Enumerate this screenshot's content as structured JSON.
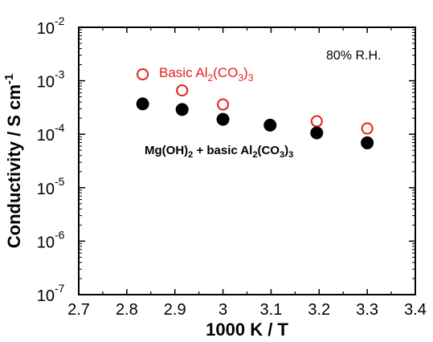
{
  "chart_data": {
    "type": "scatter",
    "xlabel": "1000 K / T",
    "ylabel": "Conductivity / S cm",
    "ylabel_superscript": "-1",
    "x_ticks": [
      "2.7",
      "2.8",
      "2.9",
      "3",
      "3.1",
      "3.2",
      "3.3",
      "3.4"
    ],
    "y_ticks": [
      {
        "base": "10",
        "exp": "-7"
      },
      {
        "base": "10",
        "exp": "-6"
      },
      {
        "base": "10",
        "exp": "-5"
      },
      {
        "base": "10",
        "exp": "-4"
      },
      {
        "base": "10",
        "exp": "-3"
      },
      {
        "base": "10",
        "exp": "-2"
      }
    ],
    "xlim": [
      2.7,
      3.4
    ],
    "ylim": [
      1e-07,
      0.01
    ],
    "yscale": "log",
    "grid": false,
    "annotation": "80% R.H.",
    "series": [
      {
        "name": "Basic Al2(CO3)3",
        "marker": "open-circle",
        "color": "#e0201b",
        "x": [
          2.833,
          2.915,
          3.0,
          3.195,
          3.3
        ],
        "y": [
          0.00132,
          0.00066,
          0.00036,
          0.000175,
          0.000128
        ]
      },
      {
        "name": "Mg(OH)2 + basic Al2(CO3)3",
        "marker": "filled-circle",
        "color": "#000000",
        "x": [
          2.833,
          2.915,
          3.0,
          3.098,
          3.195,
          3.3
        ],
        "y": [
          0.00037,
          0.00029,
          0.00019,
          0.000148,
          0.000106,
          6.9e-05
        ]
      }
    ]
  },
  "legend": {
    "red_label": {
      "pre": "Basic Al",
      "s1": "2",
      "mid": "(CO",
      "s2": "3",
      "post": ")",
      "s3": "3"
    },
    "black_label": {
      "pre": "Mg(OH)",
      "s1": "2",
      "mid": " + basic Al",
      "s2": "2",
      "mid2": "(CO",
      "s3": "3",
      "post": ")",
      "s4": "3"
    }
  }
}
